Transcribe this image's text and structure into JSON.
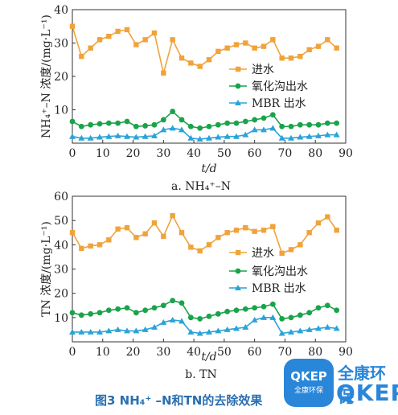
{
  "chart_data": [
    {
      "type": "line",
      "panel_label": "a. NH₄⁺–N",
      "xlabel": "t/d",
      "ylabel": "NH₄⁺–N 浓度/(mg·L⁻¹)",
      "xlim": [
        0,
        90
      ],
      "ylim": [
        0,
        40
      ],
      "xticks": [
        0,
        10,
        20,
        30,
        40,
        50,
        60,
        70,
        80,
        90
      ],
      "yticks": [
        10,
        20,
        30,
        40
      ],
      "legend_position": "right-middle",
      "series": [
        {
          "name": "进水",
          "color": "#f0a33a",
          "marker": "square",
          "x": [
            0,
            3,
            6,
            9,
            12,
            15,
            18,
            21,
            24,
            27,
            30,
            33,
            36,
            39,
            42,
            45,
            48,
            51,
            54,
            57,
            60,
            63,
            66,
            69,
            72,
            75,
            78,
            81,
            84,
            87
          ],
          "y": [
            35,
            26,
            28.5,
            31,
            32,
            33.5,
            34,
            29.5,
            31,
            33,
            21,
            31,
            25.5,
            24,
            23,
            25,
            27.5,
            28.5,
            29.5,
            30,
            28.5,
            29,
            31,
            25.5,
            25.5,
            26,
            28,
            29,
            31,
            28.5
          ]
        },
        {
          "name": "氧化沟出水",
          "color": "#19a34a",
          "marker": "circle",
          "x": [
            0,
            3,
            6,
            9,
            12,
            15,
            18,
            21,
            24,
            27,
            30,
            33,
            36,
            39,
            42,
            45,
            48,
            51,
            54,
            57,
            60,
            63,
            66,
            69,
            72,
            75,
            78,
            81,
            84,
            87
          ],
          "y": [
            6.5,
            5,
            5.5,
            5.8,
            6,
            6,
            6.5,
            5,
            5.2,
            5.5,
            7,
            9.5,
            7,
            5,
            4.5,
            5,
            5.5,
            6,
            6,
            6.5,
            7,
            7.5,
            8.5,
            5,
            5,
            5.5,
            5.5,
            5.5,
            6,
            6
          ]
        },
        {
          "name": "MBR 出水",
          "color": "#2aa3d8",
          "marker": "triangle",
          "x": [
            0,
            3,
            6,
            9,
            12,
            15,
            18,
            21,
            24,
            27,
            30,
            33,
            36,
            39,
            42,
            45,
            48,
            51,
            54,
            57,
            60,
            63,
            66,
            69,
            72,
            75,
            78,
            81,
            84,
            87
          ],
          "y": [
            2,
            1.5,
            1.5,
            1.8,
            2,
            2.2,
            2,
            1.8,
            2,
            2.2,
            4,
            4.5,
            4,
            1.5,
            1.2,
            1.5,
            1.8,
            2,
            2,
            2.5,
            4,
            4,
            4.5,
            1.5,
            1.5,
            1.8,
            2,
            2.2,
            2.5,
            2.5
          ]
        }
      ]
    },
    {
      "type": "line",
      "panel_label": "b. TN",
      "xlabel": "t/d",
      "ylabel": "TN 浓度/(mg·L⁻¹)",
      "xlim": [
        0,
        90
      ],
      "ylim": [
        0,
        60
      ],
      "xticks": [
        0,
        10,
        20,
        30,
        40,
        50,
        60,
        70,
        80,
        90
      ],
      "yticks": [
        10,
        20,
        30,
        40,
        50,
        60
      ],
      "legend_position": "right-middle",
      "series": [
        {
          "name": "进水",
          "color": "#f0a33a",
          "marker": "square",
          "x": [
            0,
            3,
            6,
            9,
            12,
            15,
            18,
            21,
            24,
            27,
            30,
            33,
            36,
            39,
            42,
            45,
            48,
            51,
            54,
            57,
            60,
            63,
            66,
            69,
            72,
            75,
            78,
            81,
            84,
            87
          ],
          "y": [
            45,
            38.5,
            39.5,
            40,
            42,
            46.5,
            47,
            43,
            44.5,
            49,
            43.5,
            52,
            45,
            39,
            37.5,
            40,
            43,
            45,
            46,
            47,
            45.5,
            46,
            47.5,
            36.5,
            38,
            40,
            45,
            49,
            51.5,
            46
          ]
        },
        {
          "name": "氧化沟出水",
          "color": "#19a34a",
          "marker": "circle",
          "x": [
            0,
            3,
            6,
            9,
            12,
            15,
            18,
            21,
            24,
            27,
            30,
            33,
            36,
            39,
            42,
            45,
            48,
            51,
            54,
            57,
            60,
            63,
            66,
            69,
            72,
            75,
            78,
            81,
            84,
            87
          ],
          "y": [
            12,
            11,
            11.5,
            12,
            13,
            13.5,
            14,
            12,
            13,
            14,
            15,
            17,
            16,
            10,
            9.5,
            10.5,
            11.5,
            12.5,
            13,
            13.5,
            14,
            14.5,
            15.5,
            9.5,
            10,
            11,
            12,
            14,
            15,
            13
          ]
        },
        {
          "name": "MBR 出水",
          "color": "#2aa3d8",
          "marker": "triangle",
          "x": [
            0,
            3,
            6,
            9,
            12,
            15,
            18,
            21,
            24,
            27,
            30,
            33,
            36,
            39,
            42,
            45,
            48,
            51,
            54,
            57,
            60,
            63,
            66,
            69,
            72,
            75,
            78,
            81,
            84,
            87
          ],
          "y": [
            4,
            4,
            4,
            4,
            4.5,
            5,
            4.5,
            4.5,
            5,
            6,
            8,
            9,
            8.5,
            4,
            3.5,
            4,
            4.5,
            5,
            5.5,
            6,
            9,
            10,
            10,
            3.5,
            4,
            4.5,
            5,
            5.5,
            6,
            5.5
          ]
        }
      ]
    }
  ],
  "figure_caption": "图3   NH₄⁺ –N和TN的去除效果",
  "logo": {
    "badge_text": "QKEP",
    "badge_sub": "全康环保",
    "name_cn": "全康环保",
    "name_en": "QKEP"
  }
}
